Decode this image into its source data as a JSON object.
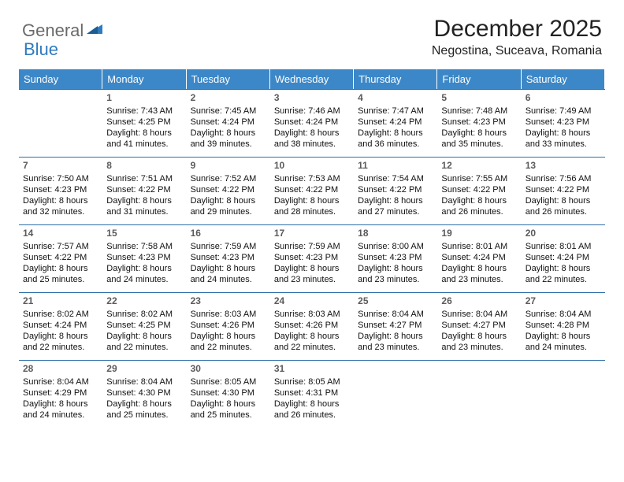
{
  "logo": {
    "general": "General",
    "blue": "Blue"
  },
  "title": "December 2025",
  "location": "Negostina, Suceava, Romania",
  "colors": {
    "header_bg": "#3c87c7",
    "header_text": "#ffffff",
    "rule": "#2d6fa8",
    "logo_gray": "#6a6a6a",
    "logo_blue": "#2f7bbf",
    "text": "#111111"
  },
  "days_of_week": [
    "Sunday",
    "Monday",
    "Tuesday",
    "Wednesday",
    "Thursday",
    "Friday",
    "Saturday"
  ],
  "first_weekday_index": 1,
  "days": [
    {
      "n": "1",
      "sunrise": "Sunrise: 7:43 AM",
      "sunset": "Sunset: 4:25 PM",
      "d1": "Daylight: 8 hours",
      "d2": "and 41 minutes."
    },
    {
      "n": "2",
      "sunrise": "Sunrise: 7:45 AM",
      "sunset": "Sunset: 4:24 PM",
      "d1": "Daylight: 8 hours",
      "d2": "and 39 minutes."
    },
    {
      "n": "3",
      "sunrise": "Sunrise: 7:46 AM",
      "sunset": "Sunset: 4:24 PM",
      "d1": "Daylight: 8 hours",
      "d2": "and 38 minutes."
    },
    {
      "n": "4",
      "sunrise": "Sunrise: 7:47 AM",
      "sunset": "Sunset: 4:24 PM",
      "d1": "Daylight: 8 hours",
      "d2": "and 36 minutes."
    },
    {
      "n": "5",
      "sunrise": "Sunrise: 7:48 AM",
      "sunset": "Sunset: 4:23 PM",
      "d1": "Daylight: 8 hours",
      "d2": "and 35 minutes."
    },
    {
      "n": "6",
      "sunrise": "Sunrise: 7:49 AM",
      "sunset": "Sunset: 4:23 PM",
      "d1": "Daylight: 8 hours",
      "d2": "and 33 minutes."
    },
    {
      "n": "7",
      "sunrise": "Sunrise: 7:50 AM",
      "sunset": "Sunset: 4:23 PM",
      "d1": "Daylight: 8 hours",
      "d2": "and 32 minutes."
    },
    {
      "n": "8",
      "sunrise": "Sunrise: 7:51 AM",
      "sunset": "Sunset: 4:22 PM",
      "d1": "Daylight: 8 hours",
      "d2": "and 31 minutes."
    },
    {
      "n": "9",
      "sunrise": "Sunrise: 7:52 AM",
      "sunset": "Sunset: 4:22 PM",
      "d1": "Daylight: 8 hours",
      "d2": "and 29 minutes."
    },
    {
      "n": "10",
      "sunrise": "Sunrise: 7:53 AM",
      "sunset": "Sunset: 4:22 PM",
      "d1": "Daylight: 8 hours",
      "d2": "and 28 minutes."
    },
    {
      "n": "11",
      "sunrise": "Sunrise: 7:54 AM",
      "sunset": "Sunset: 4:22 PM",
      "d1": "Daylight: 8 hours",
      "d2": "and 27 minutes."
    },
    {
      "n": "12",
      "sunrise": "Sunrise: 7:55 AM",
      "sunset": "Sunset: 4:22 PM",
      "d1": "Daylight: 8 hours",
      "d2": "and 26 minutes."
    },
    {
      "n": "13",
      "sunrise": "Sunrise: 7:56 AM",
      "sunset": "Sunset: 4:22 PM",
      "d1": "Daylight: 8 hours",
      "d2": "and 26 minutes."
    },
    {
      "n": "14",
      "sunrise": "Sunrise: 7:57 AM",
      "sunset": "Sunset: 4:22 PM",
      "d1": "Daylight: 8 hours",
      "d2": "and 25 minutes."
    },
    {
      "n": "15",
      "sunrise": "Sunrise: 7:58 AM",
      "sunset": "Sunset: 4:23 PM",
      "d1": "Daylight: 8 hours",
      "d2": "and 24 minutes."
    },
    {
      "n": "16",
      "sunrise": "Sunrise: 7:59 AM",
      "sunset": "Sunset: 4:23 PM",
      "d1": "Daylight: 8 hours",
      "d2": "and 24 minutes."
    },
    {
      "n": "17",
      "sunrise": "Sunrise: 7:59 AM",
      "sunset": "Sunset: 4:23 PM",
      "d1": "Daylight: 8 hours",
      "d2": "and 23 minutes."
    },
    {
      "n": "18",
      "sunrise": "Sunrise: 8:00 AM",
      "sunset": "Sunset: 4:23 PM",
      "d1": "Daylight: 8 hours",
      "d2": "and 23 minutes."
    },
    {
      "n": "19",
      "sunrise": "Sunrise: 8:01 AM",
      "sunset": "Sunset: 4:24 PM",
      "d1": "Daylight: 8 hours",
      "d2": "and 23 minutes."
    },
    {
      "n": "20",
      "sunrise": "Sunrise: 8:01 AM",
      "sunset": "Sunset: 4:24 PM",
      "d1": "Daylight: 8 hours",
      "d2": "and 22 minutes."
    },
    {
      "n": "21",
      "sunrise": "Sunrise: 8:02 AM",
      "sunset": "Sunset: 4:24 PM",
      "d1": "Daylight: 8 hours",
      "d2": "and 22 minutes."
    },
    {
      "n": "22",
      "sunrise": "Sunrise: 8:02 AM",
      "sunset": "Sunset: 4:25 PM",
      "d1": "Daylight: 8 hours",
      "d2": "and 22 minutes."
    },
    {
      "n": "23",
      "sunrise": "Sunrise: 8:03 AM",
      "sunset": "Sunset: 4:26 PM",
      "d1": "Daylight: 8 hours",
      "d2": "and 22 minutes."
    },
    {
      "n": "24",
      "sunrise": "Sunrise: 8:03 AM",
      "sunset": "Sunset: 4:26 PM",
      "d1": "Daylight: 8 hours",
      "d2": "and 22 minutes."
    },
    {
      "n": "25",
      "sunrise": "Sunrise: 8:04 AM",
      "sunset": "Sunset: 4:27 PM",
      "d1": "Daylight: 8 hours",
      "d2": "and 23 minutes."
    },
    {
      "n": "26",
      "sunrise": "Sunrise: 8:04 AM",
      "sunset": "Sunset: 4:27 PM",
      "d1": "Daylight: 8 hours",
      "d2": "and 23 minutes."
    },
    {
      "n": "27",
      "sunrise": "Sunrise: 8:04 AM",
      "sunset": "Sunset: 4:28 PM",
      "d1": "Daylight: 8 hours",
      "d2": "and 24 minutes."
    },
    {
      "n": "28",
      "sunrise": "Sunrise: 8:04 AM",
      "sunset": "Sunset: 4:29 PM",
      "d1": "Daylight: 8 hours",
      "d2": "and 24 minutes."
    },
    {
      "n": "29",
      "sunrise": "Sunrise: 8:04 AM",
      "sunset": "Sunset: 4:30 PM",
      "d1": "Daylight: 8 hours",
      "d2": "and 25 minutes."
    },
    {
      "n": "30",
      "sunrise": "Sunrise: 8:05 AM",
      "sunset": "Sunset: 4:30 PM",
      "d1": "Daylight: 8 hours",
      "d2": "and 25 minutes."
    },
    {
      "n": "31",
      "sunrise": "Sunrise: 8:05 AM",
      "sunset": "Sunset: 4:31 PM",
      "d1": "Daylight: 8 hours",
      "d2": "and 26 minutes."
    }
  ]
}
